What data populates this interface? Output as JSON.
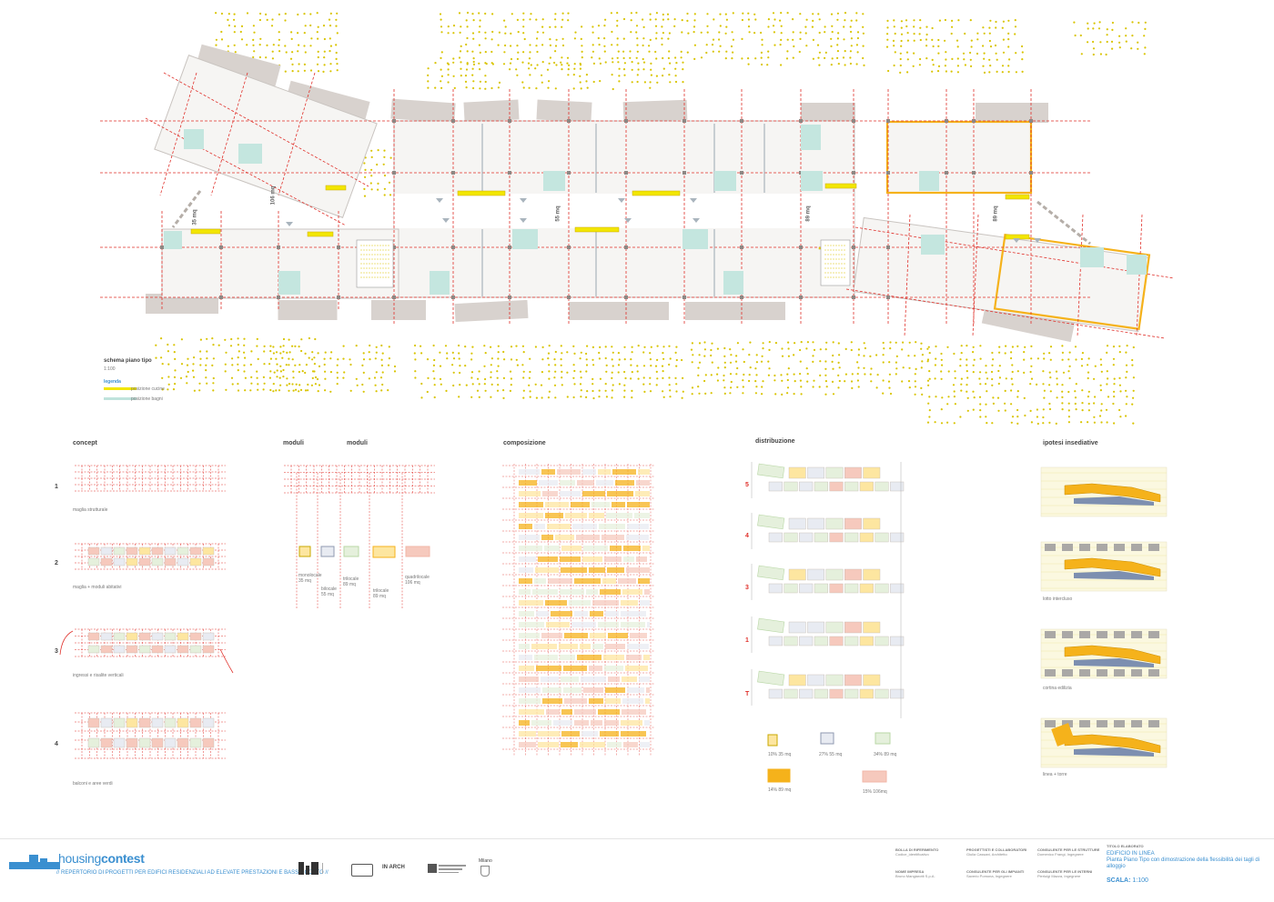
{
  "main_plan": {
    "title": "schema piano tipo",
    "scale": "1:100",
    "legend_title": "legenda",
    "legend": [
      {
        "label": "posizione cucine",
        "color": "#f2e600"
      },
      {
        "label": "posizione bagni",
        "color": "#bfe3dc"
      }
    ],
    "area_labels": [
      "35 mq",
      "106 mq",
      "55 mq",
      "89 mq",
      "89 mq"
    ]
  },
  "sections": {
    "concept": {
      "title": "concept",
      "steps": [
        {
          "num": "1",
          "caption": "maglia strutturale"
        },
        {
          "num": "2",
          "caption": "maglia + moduli abitativi"
        },
        {
          "num": "3",
          "caption": "ingressi e risalite verticali"
        },
        {
          "num": "4",
          "caption": "balconi e aree verdi"
        }
      ]
    },
    "moduli": {
      "titles": [
        "moduli",
        "moduli"
      ],
      "items": [
        {
          "name": "monolocale",
          "area": "35 mq"
        },
        {
          "name": "bilocale",
          "area": "55 mq"
        },
        {
          "name": "trilocale",
          "area": "89 mq"
        },
        {
          "name": "trilocale",
          "area": "89 mq"
        },
        {
          "name": "quadrilocale",
          "area": "106 mq"
        }
      ]
    },
    "composizione": {
      "title": "composizione"
    },
    "distribuzione": {
      "title": "distribuzione",
      "floors": [
        "5",
        "4",
        "3",
        "1",
        "T"
      ],
      "legend": [
        {
          "label": "10% 35 mq",
          "color": "#f2e600",
          "fill": "#fffde0"
        },
        {
          "label": "27% 55 mq",
          "color": "#8f9ab0",
          "fill": "#e8ebf2"
        },
        {
          "label": "34% 89 mq",
          "color": "#b9d7a6",
          "fill": "#eef6e8"
        },
        {
          "label": "14% 89 mq",
          "color": "#f5b21b",
          "fill": "#fde6a0"
        },
        {
          "label": "15% 106mq",
          "color": "#f1b7a8",
          "fill": "#fbe4dc"
        }
      ]
    },
    "ipotesi": {
      "title": "ipotesi  insediative",
      "items": [
        {
          "caption": ""
        },
        {
          "caption": "lotto intercluso"
        },
        {
          "caption": "cortina edilizia"
        },
        {
          "caption": "linea + torre"
        }
      ]
    }
  },
  "footer": {
    "brand_light": "housing",
    "brand_bold": "contest",
    "tagline": "// REPERTORIO DI PROGETTI PER EDIFICI RESIDENZIALI AD ELEVATE PRESTAZIONI E BASSO COSTO //",
    "sponsors": [
      "IN ARCH",
      "Milano"
    ],
    "info_blocks": [
      {
        "key": "BOLLA DI RIFERIMENTO",
        "value": "Codice_identificativo"
      },
      {
        "key": "NOME IMPRESA",
        "value": "Bruno Mangiarotti S.p.A."
      },
      {
        "key": "PROGETTISTI E COLLABORATORI",
        "value": "Giulia Cassani, Architetto"
      },
      {
        "key": "CONSULENTE PER GLI IMPIANTI",
        "value": "Saverio Pomona, Ingegnere"
      },
      {
        "key": "CONSULENTE PER LE STRUTTURE",
        "value": "Domenico Frangi, Ingegnere"
      },
      {
        "key": "CONSULENTE PER LE INTERNI",
        "value": "Pierluigi Mazza, Ingegnere"
      }
    ],
    "sheet_label": "TITOLO ELABORATO",
    "sheet_title": "EDIFICIO IN LINEA",
    "sheet_subtitle": "Pianta Piano Tipo con dimostrazione della flessibilità dei tagli di alloggio",
    "scale_label": "SCALA:",
    "scale_value": "1:100"
  }
}
